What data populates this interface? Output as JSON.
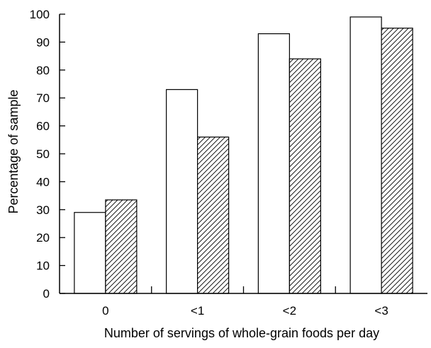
{
  "chart_data": {
    "type": "bar",
    "title": "",
    "xlabel": "Number of servings of whole-grain foods per day",
    "ylabel": "Percentage of sample",
    "categories": [
      "0",
      "<1",
      "<2",
      "<3"
    ],
    "series": [
      {
        "style": "open",
        "values": [
          29,
          73,
          93,
          99
        ]
      },
      {
        "style": "hatched",
        "values": [
          33.5,
          56,
          84,
          95
        ]
      }
    ],
    "ylim": [
      0,
      100
    ],
    "yticks": [
      0,
      10,
      20,
      30,
      40,
      50,
      60,
      70,
      80,
      90,
      100
    ],
    "grid": false,
    "legend": "none"
  }
}
